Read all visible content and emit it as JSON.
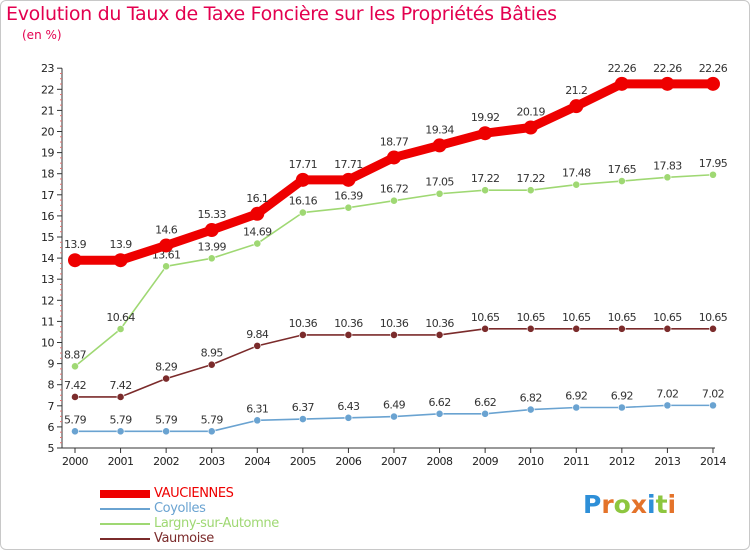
{
  "title": "Evolution du Taux de Taxe Foncière sur les Propriétés Bâties",
  "subtitle": "(en %)",
  "logo": {
    "letters": [
      "P",
      "r",
      "o",
      "x",
      "i",
      "t",
      "i"
    ],
    "colors": [
      "#2e8fd8",
      "#e4732a",
      "#8dc63f",
      "#e4732a",
      "#2e8fd8",
      "#8dc63f",
      "#e4732a"
    ]
  },
  "chart_data": {
    "type": "line",
    "x": [
      2000,
      2001,
      2002,
      2003,
      2004,
      2005,
      2006,
      2007,
      2008,
      2009,
      2010,
      2011,
      2012,
      2013,
      2014
    ],
    "ylim": [
      5,
      23
    ],
    "yticks": [
      5,
      6,
      7,
      8,
      9,
      10,
      11,
      12,
      13,
      14,
      15,
      16,
      17,
      18,
      19,
      20,
      21,
      22,
      23
    ],
    "grid": false,
    "legend_position": "bottom-left",
    "series": [
      {
        "name": "VAUCIENNES",
        "color": "#ee0000",
        "values": [
          13.9,
          13.9,
          14.6,
          15.33,
          16.1,
          17.71,
          17.71,
          18.77,
          19.34,
          19.92,
          20.19,
          21.2,
          22.26,
          22.26,
          22.26
        ],
        "labels": [
          "13.9",
          "13.9",
          "14.6",
          "15.33",
          "16.1",
          "17.71",
          "17.71",
          "18.77",
          "19.34",
          "19.92",
          "20.19",
          "21.2",
          "22.26",
          "22.26",
          "22.26"
        ]
      },
      {
        "name": "Coyolles",
        "color": "#6aa3d1",
        "values": [
          5.79,
          5.79,
          5.79,
          5.79,
          6.31,
          6.37,
          6.43,
          6.49,
          6.62,
          6.62,
          6.82,
          6.92,
          6.92,
          7.02,
          7.02
        ],
        "labels": [
          "5.79",
          "5.79",
          "5.79",
          "5.79",
          "6.31",
          "6.37",
          "6.43",
          "6.49",
          "6.62",
          "6.62",
          "6.82",
          "6.92",
          "6.92",
          "7.02",
          "7.02"
        ]
      },
      {
        "name": "Largny-sur-Automne",
        "color": "#9fd873",
        "values": [
          8.87,
          10.64,
          13.61,
          13.99,
          14.69,
          16.16,
          16.39,
          16.72,
          17.05,
          17.22,
          17.22,
          17.48,
          17.65,
          17.83,
          17.95
        ],
        "labels": [
          "8.87",
          "10.64",
          "13.61",
          "13.99",
          "14.69",
          "16.16",
          "16.39",
          "16.72",
          "17.05",
          "17.22",
          "17.22",
          "17.48",
          "17.65",
          "17.83",
          "17.95"
        ]
      },
      {
        "name": "Vaumoise",
        "color": "#7b2b2b",
        "values": [
          7.42,
          7.42,
          8.29,
          8.95,
          9.84,
          10.36,
          10.36,
          10.36,
          10.36,
          10.65,
          10.65,
          10.65,
          10.65,
          10.65,
          10.65
        ],
        "labels": [
          "7.42",
          "7.42",
          "8.29",
          "8.95",
          "9.84",
          "10.36",
          "10.36",
          "10.36",
          "10.36",
          "10.65",
          "10.65",
          "10.65",
          "10.65",
          "10.65",
          "10.65"
        ]
      }
    ]
  }
}
